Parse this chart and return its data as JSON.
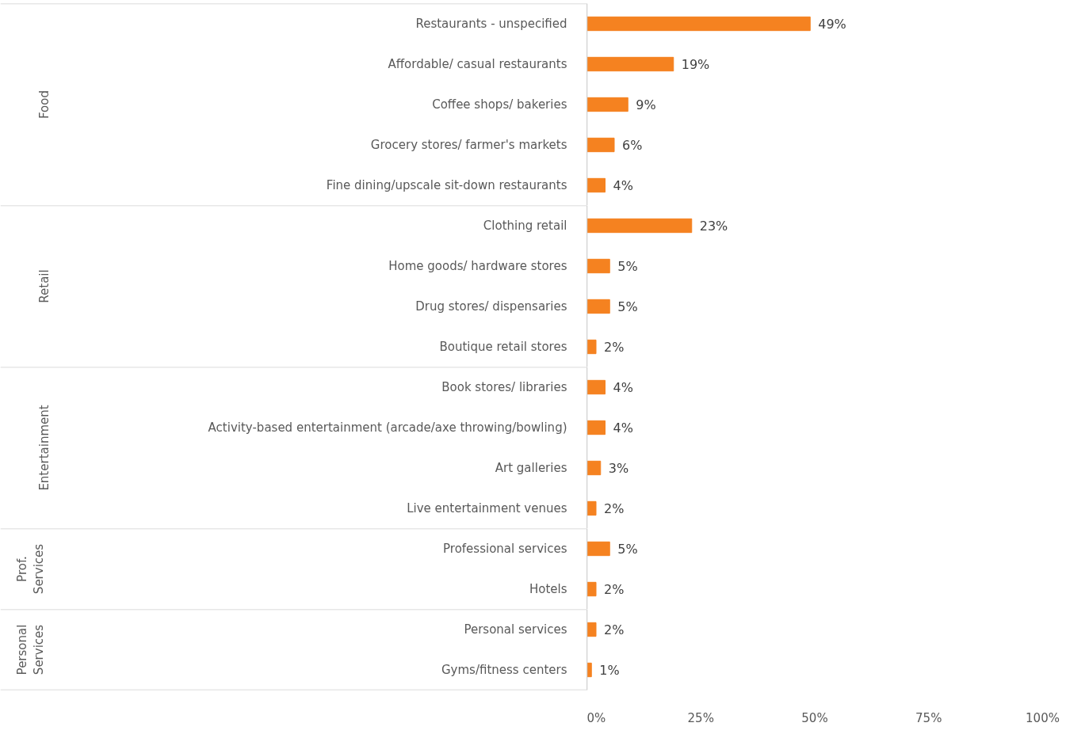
{
  "chart_data": [
    {
      "type": "bar",
      "orientation": "horizontal",
      "ylabel": "Food",
      "color": "#f58220",
      "grid": false,
      "tick_labels": "y",
      "categories": [
        "Restaurants - unspecified",
        "Affordable/ casual restaurants",
        "Coffee shops/ bakeries",
        "Grocery stores/ farmer's markets",
        "Fine dining/upscale sit-down restaurants"
      ],
      "values": [
        49,
        19,
        9,
        6,
        4
      ],
      "value_labels": [
        "49%",
        "19%",
        "9%",
        "6%",
        "4%"
      ],
      "xlim": [
        0,
        100
      ]
    },
    {
      "type": "bar",
      "orientation": "horizontal",
      "ylabel": "Retail",
      "color": "#f58220",
      "grid": false,
      "tick_labels": "y",
      "categories": [
        "Clothing retail",
        "Home goods/ hardware stores",
        "Drug stores/ dispensaries",
        "Boutique retail stores"
      ],
      "values": [
        23,
        5,
        5,
        2
      ],
      "value_labels": [
        "23%",
        "5%",
        "5%",
        "2%"
      ],
      "xlim": [
        0,
        100
      ]
    },
    {
      "type": "bar",
      "orientation": "horizontal",
      "ylabel": "Entertainment",
      "color": "#f58220",
      "grid": false,
      "tick_labels": "y",
      "categories": [
        "Book stores/ libraries",
        "Activity-based entertainment (arcade/axe throwing/bowling)",
        "Art galleries",
        "Live entertainment venues"
      ],
      "values": [
        4,
        4,
        3,
        2
      ],
      "value_labels": [
        "4%",
        "4%",
        "3%",
        "2%"
      ],
      "xlim": [
        0,
        100
      ]
    },
    {
      "type": "bar",
      "orientation": "horizontal",
      "ylabel": "Prof. Services",
      "color": "#f58220",
      "grid": false,
      "tick_labels": "y",
      "categories": [
        "Professional services",
        "Hotels"
      ],
      "values": [
        5,
        2
      ],
      "value_labels": [
        "5%",
        "2%"
      ],
      "xlim": [
        0,
        100
      ]
    },
    {
      "type": "bar",
      "orientation": "horizontal",
      "ylabel": "Personal Services",
      "color": "#f58220",
      "grid": false,
      "categories": [
        "Personal services",
        "Gyms/fitness centers"
      ],
      "values": [
        2,
        1
      ],
      "value_labels": [
        "2%",
        "1%"
      ],
      "xlim": [
        0,
        100
      ],
      "xticks": [
        {
          "value": 0,
          "label": "0%"
        },
        {
          "value": 25,
          "label": "25%"
        },
        {
          "value": 50,
          "label": "50%"
        },
        {
          "value": 75,
          "label": "75%"
        },
        {
          "value": 100,
          "label": "100%"
        }
      ]
    }
  ]
}
